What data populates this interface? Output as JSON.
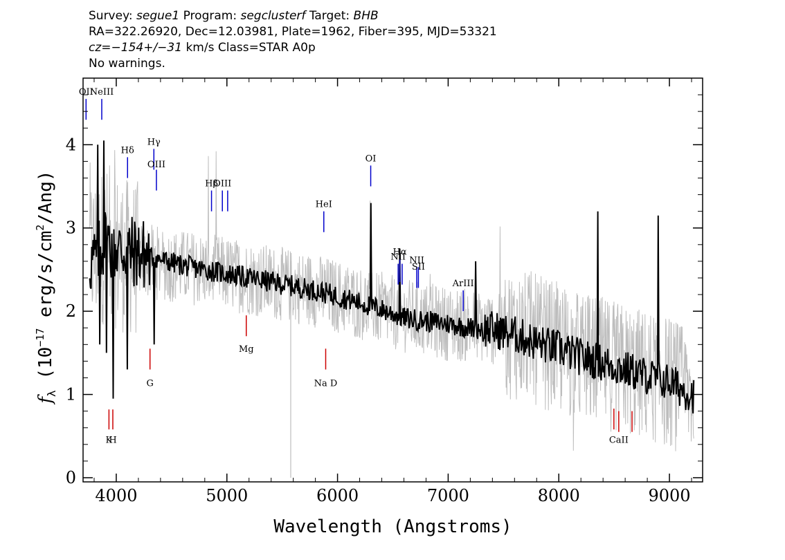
{
  "header": {
    "line1": {
      "survey_label": "Survey:",
      "survey": "segue1",
      "program_label": "Program:",
      "program": "segclusterf",
      "target_label": "Target:",
      "target": "BHB"
    },
    "line2": "RA=322.26920, Dec=12.03981, Plate=1962, Fiber=395, MJD=53321",
    "line3": {
      "cz": "cz=−154+/−31",
      "rest": " km/s Class=STAR A0p"
    },
    "line4": "No warnings."
  },
  "chart_data": {
    "type": "line",
    "xlabel": "Wavelength (Angstroms)",
    "ylabel_parts": {
      "f": "f",
      "sub": "λ",
      "pre": " (10",
      "exp": "−17",
      "mid": " erg/s/cm",
      "exp2": "2",
      "post": "/Ang)"
    },
    "xlim": [
      3700,
      9300
    ],
    "ylim": [
      -0.05,
      4.8
    ],
    "x_ticks": [
      4000,
      5000,
      6000,
      7000,
      8000,
      9000
    ],
    "x_tick_labels": [
      "4000",
      "5000",
      "6000",
      "7000",
      "8000",
      "9000"
    ],
    "y_ticks": [
      0,
      1,
      2,
      3,
      4
    ],
    "y_tick_labels": [
      "0",
      "1",
      "2",
      "3",
      "4"
    ],
    "series": [
      {
        "role": "data-noise",
        "color": "#bdbdbd",
        "anchors": [
          [
            3800,
            2.7
          ],
          [
            3900,
            2.8
          ],
          [
            4100,
            2.65
          ],
          [
            4300,
            2.6
          ],
          [
            4500,
            2.55
          ],
          [
            4800,
            2.5
          ],
          [
            5000,
            2.45
          ],
          [
            5400,
            2.35
          ],
          [
            5800,
            2.25
          ],
          [
            6200,
            2.1
          ],
          [
            6600,
            1.95
          ],
          [
            7000,
            1.85
          ],
          [
            7400,
            1.8
          ],
          [
            7800,
            1.65
          ],
          [
            8200,
            1.45
          ],
          [
            8600,
            1.3
          ],
          [
            9000,
            1.15
          ],
          [
            9200,
            1.0
          ]
        ]
      },
      {
        "role": "smoothed",
        "color": "#000000",
        "anchors": [
          [
            3760,
            2.6
          ],
          [
            3800,
            2.6
          ],
          [
            3900,
            2.85
          ],
          [
            4000,
            2.75
          ],
          [
            4200,
            2.7
          ],
          [
            4400,
            2.62
          ],
          [
            4600,
            2.55
          ],
          [
            4800,
            2.5
          ],
          [
            5000,
            2.45
          ],
          [
            5200,
            2.4
          ],
          [
            5400,
            2.35
          ],
          [
            5600,
            2.3
          ],
          [
            5800,
            2.25
          ],
          [
            6000,
            2.18
          ],
          [
            6200,
            2.1
          ],
          [
            6400,
            2.02
          ],
          [
            6600,
            1.92
          ],
          [
            6800,
            1.88
          ],
          [
            7000,
            1.85
          ],
          [
            7200,
            1.8
          ],
          [
            7400,
            1.78
          ],
          [
            7600,
            1.72
          ],
          [
            7800,
            1.62
          ],
          [
            8000,
            1.55
          ],
          [
            8200,
            1.45
          ],
          [
            8400,
            1.38
          ],
          [
            8600,
            1.3
          ],
          [
            8800,
            1.22
          ],
          [
            9000,
            1.15
          ],
          [
            9200,
            1.0
          ]
        ],
        "features": [
          [
            3835,
            4.0
          ],
          [
            3850,
            1.6
          ],
          [
            3890,
            4.05
          ],
          [
            3910,
            1.5
          ],
          [
            3970,
            0.95
          ],
          [
            4102,
            1.3
          ],
          [
            4340,
            1.6
          ],
          [
            6300,
            3.3
          ],
          [
            6565,
            2.75
          ],
          [
            7250,
            2.6
          ],
          [
            8350,
            3.2
          ],
          [
            8900,
            3.15
          ]
        ]
      }
    ],
    "emission_lines": [
      {
        "label": "Hδ",
        "wavelength": 4102,
        "y0": 3.6,
        "y1": 3.85,
        "label_y": 3.9
      },
      {
        "label": "Hγ",
        "wavelength": 4340,
        "y0": 3.7,
        "y1": 3.95,
        "label_y": 4.0
      },
      {
        "label": "OIII",
        "wavelength": 4363,
        "y0": 3.45,
        "y1": 3.7,
        "label_y": 3.73
      },
      {
        "label": "Hβ",
        "wavelength": 4861,
        "y0": 3.2,
        "y1": 3.45,
        "label_y": 3.5
      },
      {
        "label": "OIII",
        "wavelength": 4959,
        "y0": 3.2,
        "y1": 3.45,
        "label_y": 3.5
      },
      {
        "label": "",
        "wavelength": 5007,
        "y0": 3.2,
        "y1": 3.45,
        "label_y": 3.5
      },
      {
        "label": "HeI",
        "wavelength": 5876,
        "y0": 2.95,
        "y1": 3.2,
        "label_y": 3.25
      },
      {
        "label": "OI",
        "wavelength": 6300,
        "y0": 3.5,
        "y1": 3.75,
        "label_y": 3.8
      },
      {
        "label": "NII",
        "wavelength": 6548,
        "y0": 2.32,
        "y1": 2.57,
        "label_y": 2.62
      },
      {
        "label": "Hα",
        "wavelength": 6563,
        "y0": 2.35,
        "y1": 2.62,
        "label_y": 2.68
      },
      {
        "label": "",
        "wavelength": 6584,
        "y0": 2.32,
        "y1": 2.57,
        "label_y": 2.62
      },
      {
        "label": "NII",
        "wavelength": 6716,
        "y0": 2.28,
        "y1": 2.53,
        "label_y": 2.58
      },
      {
        "label": "SII",
        "wavelength": 6731,
        "y0": 2.28,
        "y1": 2.53,
        "label_y": 2.5
      },
      {
        "label": "ArIII",
        "wavelength": 7136,
        "y0": 2.0,
        "y1": 2.25,
        "label_y": 2.3
      },
      {
        "label": "OII",
        "wavelength": 3727,
        "y0": 4.3,
        "y1": 4.55,
        "label_y": 4.6
      },
      {
        "label": "NeIII",
        "wavelength": 3869,
        "y0": 4.3,
        "y1": 4.55,
        "label_y": 4.6
      }
    ],
    "absorption_lines": [
      {
        "label": "K",
        "wavelength": 3934,
        "y0": 0.82,
        "y1": 0.58,
        "label_y": 0.52
      },
      {
        "label": "H",
        "wavelength": 3969,
        "y0": 0.82,
        "y1": 0.58,
        "label_y": 0.52
      },
      {
        "label": "G",
        "wavelength": 4305,
        "y0": 1.55,
        "y1": 1.3,
        "label_y": 1.2
      },
      {
        "label": "Mg",
        "wavelength": 5175,
        "y0": 1.95,
        "y1": 1.7,
        "label_y": 1.61
      },
      {
        "label": "Na  D",
        "wavelength": 5893,
        "y0": 1.55,
        "y1": 1.3,
        "label_y": 1.2
      },
      {
        "label": "",
        "wavelength": 8498,
        "y0": 0.83,
        "y1": 0.58,
        "label_y": 0.52
      },
      {
        "label": "CaII",
        "wavelength": 8542,
        "y0": 0.8,
        "y1": 0.55,
        "label_y": 0.52
      },
      {
        "label": "",
        "wavelength": 8662,
        "y0": 0.8,
        "y1": 0.55,
        "label_y": 0.52
      }
    ],
    "emission_color": "#0000cc",
    "absorption_color": "#cc0000"
  }
}
